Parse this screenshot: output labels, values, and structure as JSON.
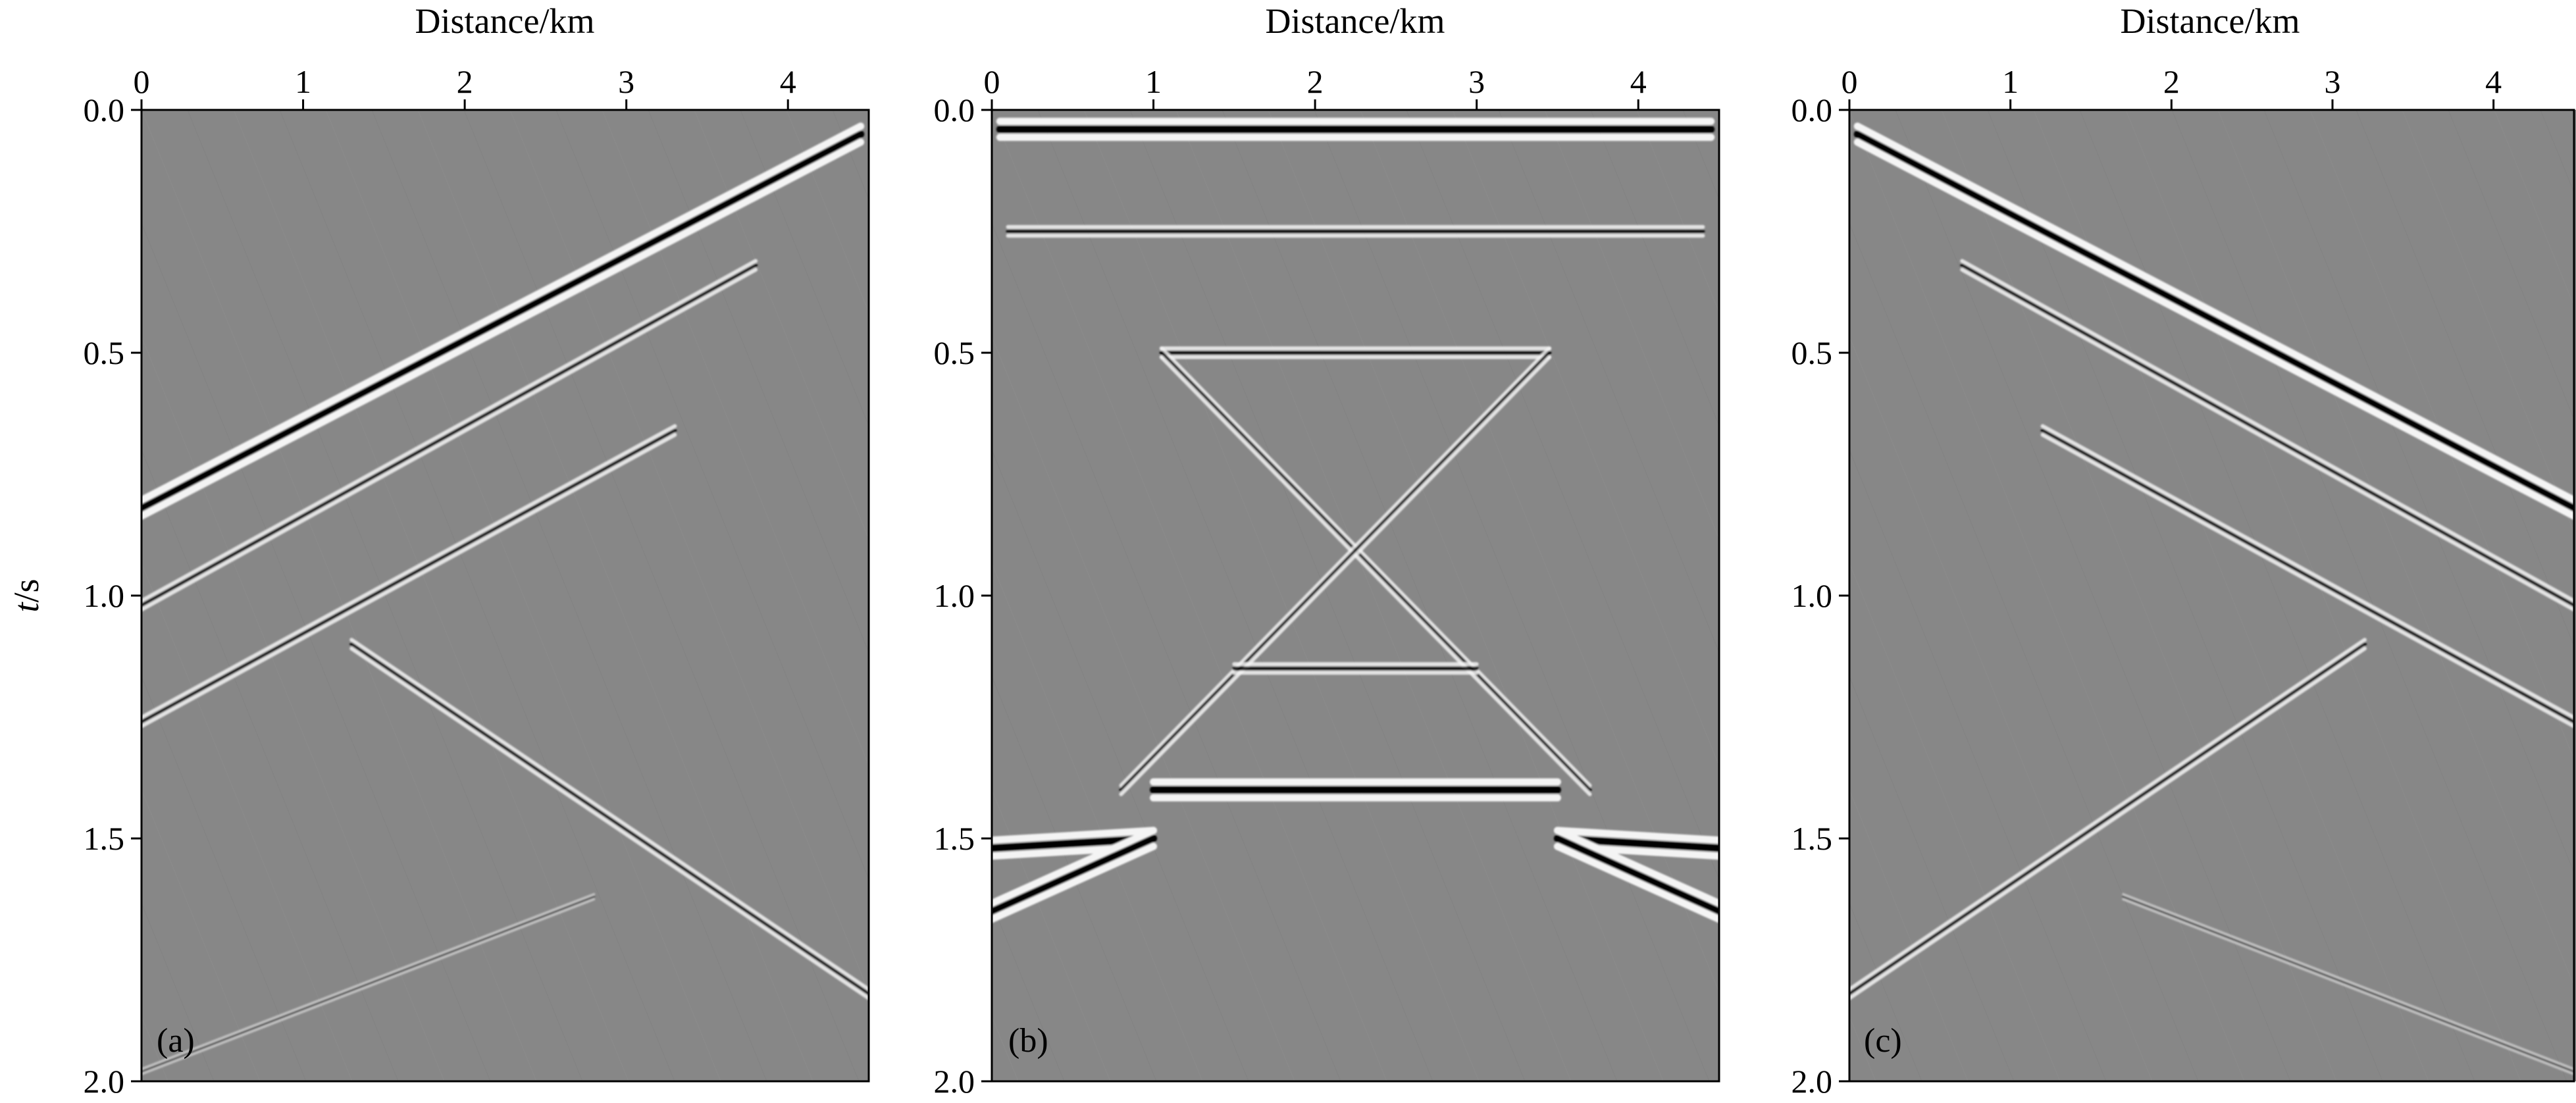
{
  "figure": {
    "ylabel_italic": "t",
    "ylabel_unit": "/s"
  },
  "chart_data": [
    {
      "type": "heatmap",
      "panel_label": "(a)",
      "xlabel": "Distance/km",
      "ylabel": "t/s",
      "xlim": [
        0,
        4.5
      ],
      "ylim": [
        2.0,
        0.0
      ],
      "x_ticks": [
        0,
        1,
        2,
        3,
        4
      ],
      "y_ticks": [
        0.0,
        0.5,
        1.0,
        1.5,
        2.0
      ],
      "x_tick_labels": [
        "0",
        "1",
        "2",
        "3",
        "4"
      ],
      "y_tick_labels": [
        "0.0",
        "0.5",
        "1.0",
        "1.5",
        "2.0"
      ],
      "colormap": "gray",
      "background": "#878787",
      "events": [
        {
          "kind": "line",
          "x": [
            0,
            4.45
          ],
          "t": [
            0.82,
            0.05
          ],
          "strength": "strong"
        },
        {
          "kind": "line",
          "x": [
            0,
            3.8
          ],
          "t": [
            1.02,
            0.32
          ],
          "strength": "medium"
        },
        {
          "kind": "line",
          "x": [
            0,
            3.3
          ],
          "t": [
            1.26,
            0.66
          ],
          "strength": "medium"
        },
        {
          "kind": "line",
          "x": [
            1.3,
            4.5
          ],
          "t": [
            1.1,
            1.82
          ],
          "strength": "medium"
        },
        {
          "kind": "line",
          "x": [
            0,
            2.8
          ],
          "t": [
            1.98,
            1.62
          ],
          "strength": "weak"
        }
      ]
    },
    {
      "type": "heatmap",
      "panel_label": "(b)",
      "xlabel": "Distance/km",
      "ylabel": "",
      "xlim": [
        0,
        4.5
      ],
      "ylim": [
        2.0,
        0.0
      ],
      "x_ticks": [
        0,
        1,
        2,
        3,
        4
      ],
      "y_ticks": [
        0.0,
        0.5,
        1.0,
        1.5,
        2.0
      ],
      "x_tick_labels": [
        "0",
        "1",
        "2",
        "3",
        "4"
      ],
      "y_tick_labels": [
        "0.0",
        "0.5",
        "1.0",
        "1.5",
        "2.0"
      ],
      "colormap": "gray",
      "background": "#878787",
      "events": [
        {
          "kind": "line",
          "x": [
            0.05,
            4.45
          ],
          "t": [
            0.04,
            0.04
          ],
          "strength": "strong"
        },
        {
          "kind": "line",
          "x": [
            0.1,
            4.4
          ],
          "t": [
            0.25,
            0.25
          ],
          "strength": "medium"
        },
        {
          "kind": "line",
          "x": [
            1.05,
            3.45
          ],
          "t": [
            0.5,
            0.5
          ],
          "strength": "medium"
        },
        {
          "kind": "line",
          "x": [
            1.05,
            3.7
          ],
          "t": [
            0.5,
            1.4
          ],
          "strength": "medium"
        },
        {
          "kind": "line",
          "x": [
            3.45,
            0.8
          ],
          "t": [
            0.5,
            1.4
          ],
          "strength": "medium"
        },
        {
          "kind": "line",
          "x": [
            1.5,
            3.0
          ],
          "t": [
            1.15,
            1.15
          ],
          "strength": "medium"
        },
        {
          "kind": "line",
          "x": [
            1.0,
            3.5
          ],
          "t": [
            1.4,
            1.4
          ],
          "strength": "strong"
        },
        {
          "kind": "line",
          "x": [
            0,
            1.0
          ],
          "t": [
            1.52,
            1.5
          ],
          "strength": "strong"
        },
        {
          "kind": "line",
          "x": [
            3.5,
            4.5
          ],
          "t": [
            1.5,
            1.52
          ],
          "strength": "strong"
        },
        {
          "kind": "line",
          "x": [
            0,
            1.0
          ],
          "t": [
            1.65,
            1.5
          ],
          "strength": "strong"
        },
        {
          "kind": "line",
          "x": [
            3.5,
            4.5
          ],
          "t": [
            1.5,
            1.65
          ],
          "strength": "strong"
        }
      ]
    },
    {
      "type": "heatmap",
      "panel_label": "(c)",
      "xlabel": "Distance/km",
      "ylabel": "",
      "xlim": [
        0,
        4.5
      ],
      "ylim": [
        2.0,
        0.0
      ],
      "x_ticks": [
        0,
        1,
        2,
        3,
        4
      ],
      "y_ticks": [
        0.0,
        0.5,
        1.0,
        1.5,
        2.0
      ],
      "x_tick_labels": [
        "0",
        "1",
        "2",
        "3",
        "4"
      ],
      "y_tick_labels": [
        "0.0",
        "0.5",
        "1.0",
        "1.5",
        "2.0"
      ],
      "colormap": "gray",
      "background": "#878787",
      "events": [
        {
          "kind": "line",
          "x": [
            0.05,
            4.5
          ],
          "t": [
            0.05,
            0.82
          ],
          "strength": "strong"
        },
        {
          "kind": "line",
          "x": [
            0.7,
            4.5
          ],
          "t": [
            0.32,
            1.02
          ],
          "strength": "medium"
        },
        {
          "kind": "line",
          "x": [
            1.2,
            4.5
          ],
          "t": [
            0.66,
            1.26
          ],
          "strength": "medium"
        },
        {
          "kind": "line",
          "x": [
            0,
            3.2
          ],
          "t": [
            1.82,
            1.1
          ],
          "strength": "medium"
        },
        {
          "kind": "line",
          "x": [
            1.7,
            4.5
          ],
          "t": [
            1.62,
            1.98
          ],
          "strength": "weak"
        }
      ]
    }
  ]
}
